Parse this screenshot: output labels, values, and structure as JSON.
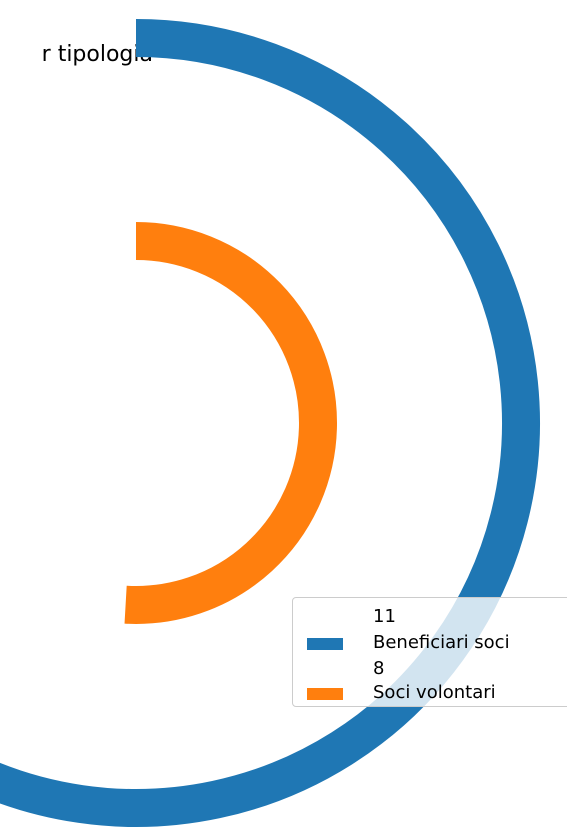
{
  "chart_data": {
    "type": "radial_bar",
    "title": "r tipologia",
    "series": [
      {
        "name": "Beneficiari soci",
        "value": 11,
        "color": "#1f77b4"
      },
      {
        "name": "Soci volontari",
        "value": 8,
        "color": "#ff7f0e"
      }
    ],
    "max_value": 11,
    "legend": "lower-right"
  }
}
